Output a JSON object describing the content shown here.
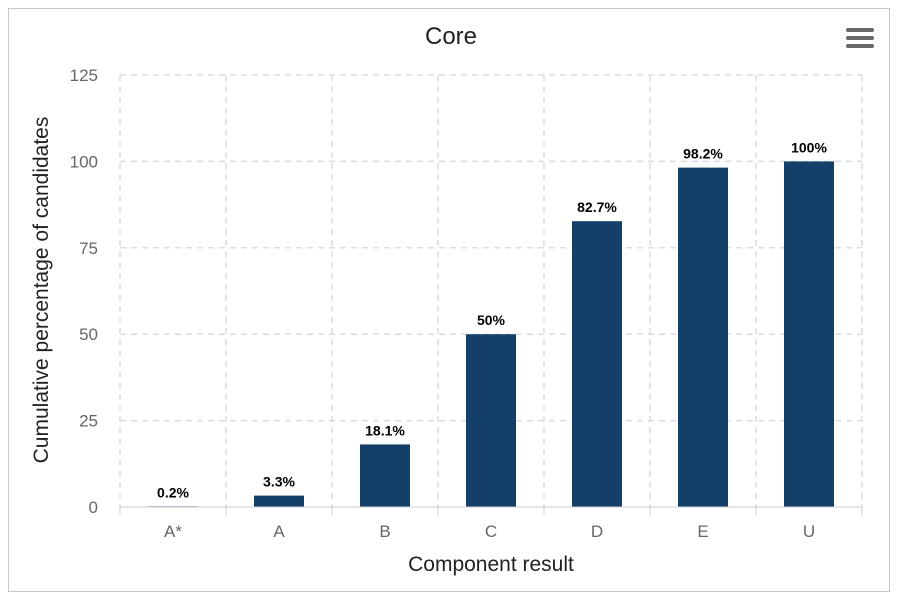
{
  "chart_data": {
    "type": "bar",
    "title": "Core",
    "xlabel": "Component result",
    "ylabel": "Cumulative percentage of candidates",
    "categories": [
      "A*",
      "A",
      "B",
      "C",
      "D",
      "E",
      "U"
    ],
    "values": [
      0.2,
      3.3,
      18.1,
      50,
      82.7,
      98.2,
      100
    ],
    "data_labels": [
      "0.2%",
      "3.3%",
      "18.1%",
      "50%",
      "82.7%",
      "98.2%",
      "100%"
    ],
    "yticks": [
      "0",
      "25",
      "50",
      "75",
      "100",
      "125"
    ],
    "ylim": [
      0,
      125
    ],
    "grid": true,
    "legend": "none"
  },
  "colors": {
    "bar": "#133f69",
    "grid": "#d9dde3",
    "axis_text": "#666666",
    "title_text": "#222222"
  },
  "menu": {
    "icon": "hamburger-menu-icon"
  }
}
